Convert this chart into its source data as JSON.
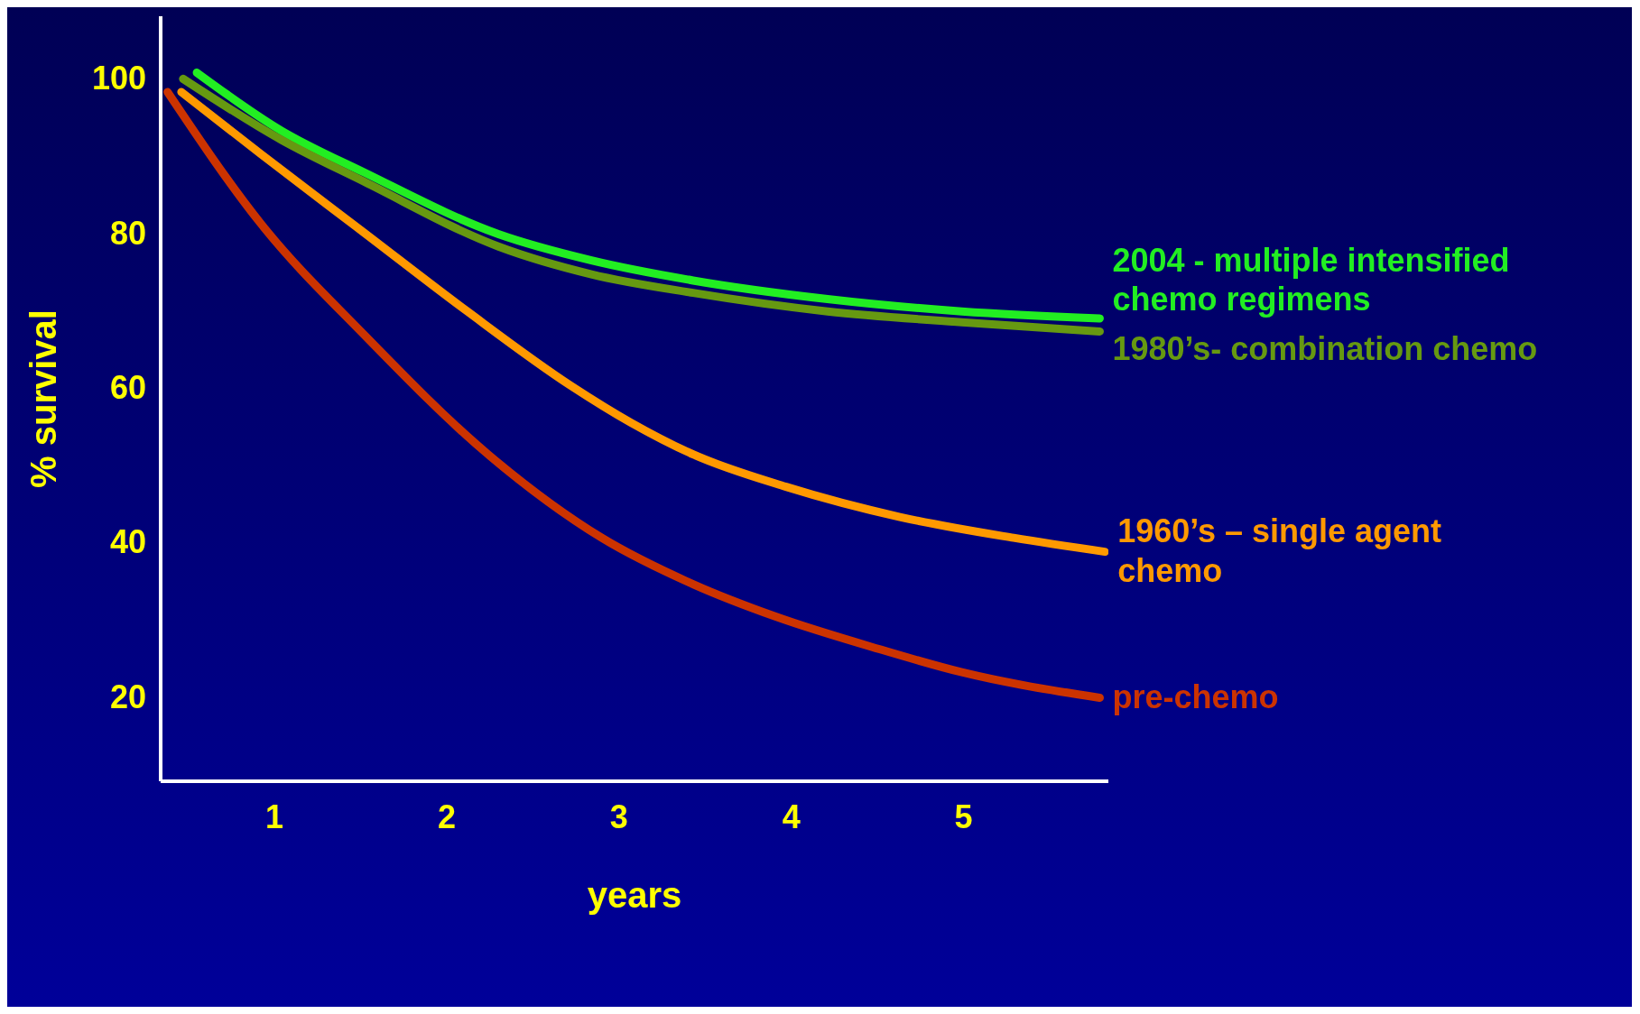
{
  "chart_data": {
    "type": "line",
    "xlabel": "years",
    "ylabel": "% survival",
    "xlim": [
      0.34,
      5.84
    ],
    "ylim": [
      9,
      108
    ],
    "xticks": [
      1,
      2,
      3,
      4,
      5
    ],
    "yticks": [
      20,
      40,
      60,
      80,
      100
    ],
    "marker": "none",
    "line_style": "solid",
    "series": [
      {
        "name": "2004 - multiple intensified chemo regimens",
        "color": "#22ee22",
        "x": [
          0.55,
          1.04,
          1.52,
          2.3,
          2.84,
          3.43,
          4.21,
          4.99,
          5.79
        ],
        "values": [
          100.7,
          93.2,
          87.8,
          79.8,
          76.4,
          73.8,
          71.4,
          69.8,
          68.9
        ]
      },
      {
        "name": "1980’s- combination chemo",
        "color": "#669911",
        "x": [
          0.47,
          1.04,
          1.52,
          2.3,
          2.84,
          3.43,
          4.21,
          4.99,
          5.79
        ],
        "values": [
          99.9,
          92,
          86.6,
          78.2,
          74.6,
          72.2,
          69.8,
          68.4,
          67.2
        ]
      },
      {
        "name": "1960’s – single agent chemo",
        "color": "#ff9900",
        "x": [
          0.46,
          0.92,
          1.52,
          2.12,
          2.72,
          3.07,
          3.43,
          3.97,
          4.63,
          5.29,
          5.82
        ],
        "values": [
          98.2,
          90.2,
          80,
          69.8,
          60.2,
          55.4,
          51.3,
          47.1,
          43.2,
          40.5,
          38.7
        ]
      },
      {
        "name": "pre-chemo",
        "color": "#cc3300",
        "x": [
          0.38,
          0.92,
          1.52,
          2.24,
          2.9,
          3.43,
          3.91,
          4.51,
          4.99,
          5.79
        ],
        "values": [
          98.2,
          81.2,
          66.8,
          51.3,
          40.5,
          34.5,
          30.3,
          26.1,
          23.1,
          19.8
        ]
      }
    ]
  }
}
